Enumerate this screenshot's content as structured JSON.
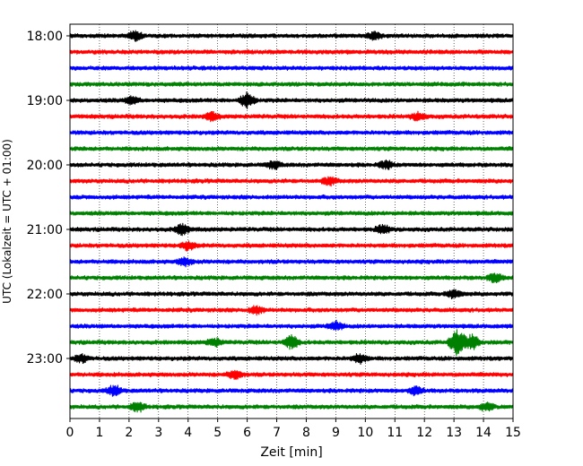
{
  "chart_data": {
    "type": "line",
    "title": "",
    "xlabel": "Zeit  [min]",
    "ylabel": "UTC (Lokalzeit = UTC + 01:00)",
    "xlim": [
      0,
      15
    ],
    "xticks": [
      "0",
      "1",
      "2",
      "3",
      "4",
      "5",
      "6",
      "7",
      "8",
      "9",
      "10",
      "11",
      "12",
      "13",
      "14",
      "15"
    ],
    "yticks": [
      {
        "label": "18:00",
        "trace_index": 0
      },
      {
        "label": "19:00",
        "trace_index": 4
      },
      {
        "label": "20:00",
        "trace_index": 8
      },
      {
        "label": "21:00",
        "trace_index": 12
      },
      {
        "label": "22:00",
        "trace_index": 16
      },
      {
        "label": "23:00",
        "trace_index": 20
      }
    ],
    "grid": "vertical dotted at each minute",
    "trace_interval_minutes": 15,
    "trace_count": 24,
    "trace_colors": [
      "#000000",
      "#ff0000",
      "#0000ff",
      "#008000"
    ],
    "events": [
      {
        "trace": 0,
        "x": 2.2,
        "amp": 0.5
      },
      {
        "trace": 0,
        "x": 10.3,
        "amp": 0.45
      },
      {
        "trace": 4,
        "x": 6.0,
        "amp": 0.9
      },
      {
        "trace": 4,
        "x": 2.1,
        "amp": 0.4
      },
      {
        "trace": 5,
        "x": 4.8,
        "amp": 0.45
      },
      {
        "trace": 5,
        "x": 11.8,
        "amp": 0.45
      },
      {
        "trace": 8,
        "x": 6.9,
        "amp": 0.45
      },
      {
        "trace": 8,
        "x": 10.7,
        "amp": 0.45
      },
      {
        "trace": 9,
        "x": 8.8,
        "amp": 0.45
      },
      {
        "trace": 12,
        "x": 3.8,
        "amp": 0.6
      },
      {
        "trace": 12,
        "x": 10.6,
        "amp": 0.5
      },
      {
        "trace": 13,
        "x": 4.0,
        "amp": 0.5
      },
      {
        "trace": 14,
        "x": 3.9,
        "amp": 0.45
      },
      {
        "trace": 15,
        "x": 14.4,
        "amp": 0.5
      },
      {
        "trace": 16,
        "x": 13.0,
        "amp": 0.5
      },
      {
        "trace": 17,
        "x": 6.3,
        "amp": 0.45
      },
      {
        "trace": 18,
        "x": 9.0,
        "amp": 0.5
      },
      {
        "trace": 19,
        "x": 7.5,
        "amp": 0.8
      },
      {
        "trace": 19,
        "x": 13.1,
        "amp": 1.6
      },
      {
        "trace": 19,
        "x": 13.6,
        "amp": 0.9
      },
      {
        "trace": 19,
        "x": 4.9,
        "amp": 0.45
      },
      {
        "trace": 20,
        "x": 9.8,
        "amp": 0.55
      },
      {
        "trace": 20,
        "x": 0.4,
        "amp": 0.45
      },
      {
        "trace": 21,
        "x": 5.6,
        "amp": 0.5
      },
      {
        "trace": 22,
        "x": 1.5,
        "amp": 0.6
      },
      {
        "trace": 22,
        "x": 11.7,
        "amp": 0.45
      },
      {
        "trace": 23,
        "x": 2.3,
        "amp": 0.55
      },
      {
        "trace": 23,
        "x": 14.1,
        "amp": 0.45
      }
    ]
  }
}
